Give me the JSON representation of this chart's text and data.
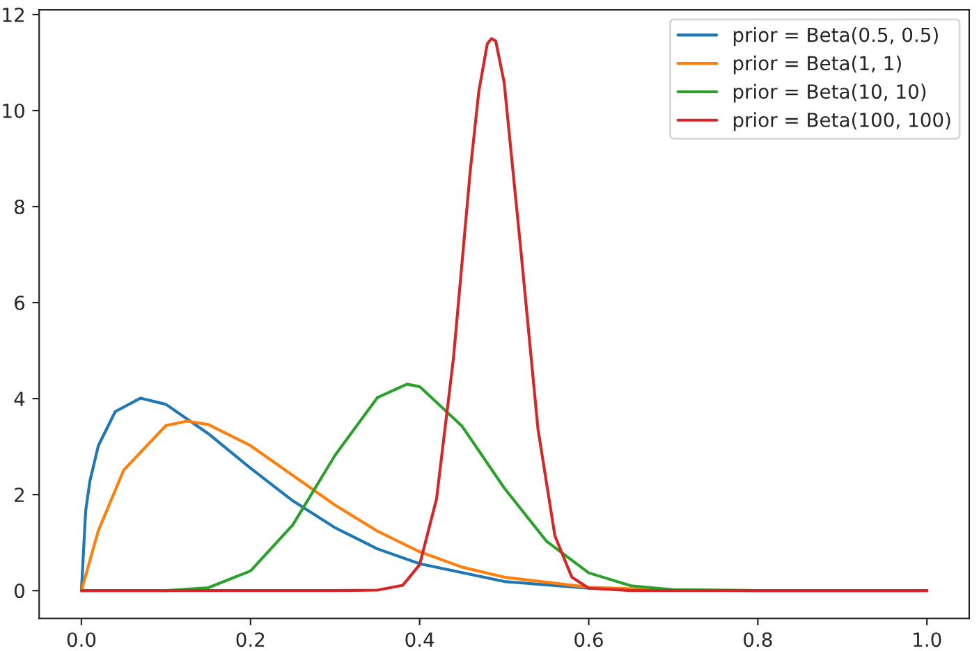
{
  "chart_data": {
    "type": "line",
    "xlim": [
      -0.05,
      1.05
    ],
    "ylim": [
      -0.58,
      12.1
    ],
    "xticks": [
      {
        "value": 0,
        "label": "0.0"
      },
      0.2,
      0.4,
      0.6,
      0.8,
      {
        "value": 1,
        "label": "1.0"
      }
    ],
    "yticks": [
      0,
      2,
      4,
      6,
      8,
      10,
      12
    ],
    "legend": "top right",
    "grid": false,
    "series": [
      {
        "name": "prior = Beta(0.5, 0.5)",
        "color": "#1f77b4",
        "x": [
          0,
          0.005,
          0.01,
          0.02,
          0.04,
          0.07,
          0.1,
          0.15,
          0.2,
          0.25,
          0.3,
          0.35,
          0.4,
          0.5,
          0.6,
          0.7
        ],
        "values": [
          0,
          1.66,
          2.28,
          3.02,
          3.73,
          4.01,
          3.88,
          3.27,
          2.55,
          1.87,
          1.31,
          0.87,
          0.56,
          0.19,
          0.05,
          0.01
        ]
      },
      {
        "name": "prior = Beta(1, 1)",
        "color": "#ff7f0e",
        "x": [
          0,
          0.02,
          0.05,
          0.1,
          0.125,
          0.15,
          0.2,
          0.25,
          0.3,
          0.35,
          0.4,
          0.45,
          0.5,
          0.6,
          0.7,
          0.8,
          1.0
        ],
        "values": [
          0,
          1.25,
          2.51,
          3.44,
          3.53,
          3.46,
          3.02,
          2.4,
          1.78,
          1.24,
          0.81,
          0.49,
          0.28,
          0.07,
          0.01,
          0,
          0
        ]
      },
      {
        "name": "prior = Beta(10, 10)",
        "color": "#2ca02c",
        "x": [
          0,
          0.1,
          0.15,
          0.2,
          0.25,
          0.3,
          0.35,
          0.385,
          0.4,
          0.45,
          0.5,
          0.55,
          0.6,
          0.65,
          0.7,
          0.8,
          1.0
        ],
        "values": [
          0,
          0,
          0.06,
          0.41,
          1.37,
          2.82,
          4.02,
          4.3,
          4.25,
          3.43,
          2.14,
          1.03,
          0.37,
          0.1,
          0.02,
          0,
          0
        ]
      },
      {
        "name": "prior = Beta(100, 100)",
        "color": "#d62728",
        "x": [
          0,
          0.3,
          0.35,
          0.38,
          0.4,
          0.42,
          0.44,
          0.46,
          0.47,
          0.48,
          0.485,
          0.49,
          0.5,
          0.52,
          0.54,
          0.56,
          0.58,
          0.6,
          0.65,
          1.0
        ],
        "values": [
          0,
          0,
          0.01,
          0.11,
          0.54,
          1.91,
          4.84,
          8.77,
          10.4,
          11.39,
          11.5,
          11.45,
          10.58,
          7.04,
          3.36,
          1.14,
          0.28,
          0.05,
          0,
          0
        ]
      }
    ]
  }
}
